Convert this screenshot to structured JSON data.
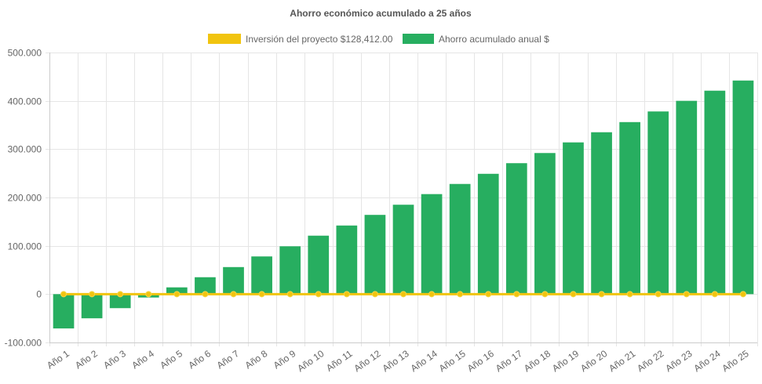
{
  "chart_data": {
    "type": "bar",
    "title": "Ahorro económico acumulado a 25 años",
    "categories": [
      "Año 1",
      "Año 2",
      "Año 3",
      "Año 4",
      "Año 5",
      "Año 6",
      "Año 7",
      "Año 8",
      "Año 9",
      "Año 10",
      "Año 11",
      "Año 12",
      "Año 13",
      "Año 14",
      "Año 15",
      "Año 16",
      "Año 17",
      "Año 18",
      "Año 19",
      "Año 20",
      "Año 21",
      "Año 22",
      "Año 23",
      "Año 24",
      "Año 25"
    ],
    "series": [
      {
        "name": "Inversión del proyecto $128,412.00",
        "type": "line",
        "color": "#f1c40f",
        "values": [
          0,
          0,
          0,
          0,
          0,
          0,
          0,
          0,
          0,
          0,
          0,
          0,
          0,
          0,
          0,
          0,
          0,
          0,
          0,
          0,
          0,
          0,
          0,
          0,
          0
        ]
      },
      {
        "name": "Ahorro acumulado anual $",
        "type": "bar",
        "color": "#27ae60",
        "values": [
          -71000,
          -50000,
          -29000,
          -7000,
          14000,
          35000,
          56000,
          78000,
          99000,
          121000,
          142000,
          164000,
          185000,
          207000,
          228000,
          249000,
          271000,
          292000,
          314000,
          335000,
          356000,
          378000,
          400000,
          421000,
          442000
        ]
      }
    ],
    "y_ticks": [
      "500.000",
      "400.000",
      "300.000",
      "200.000",
      "100.000",
      "0",
      "-100.000"
    ],
    "ylim": [
      -100000,
      500000
    ],
    "grid": true,
    "legend_position": "top"
  }
}
